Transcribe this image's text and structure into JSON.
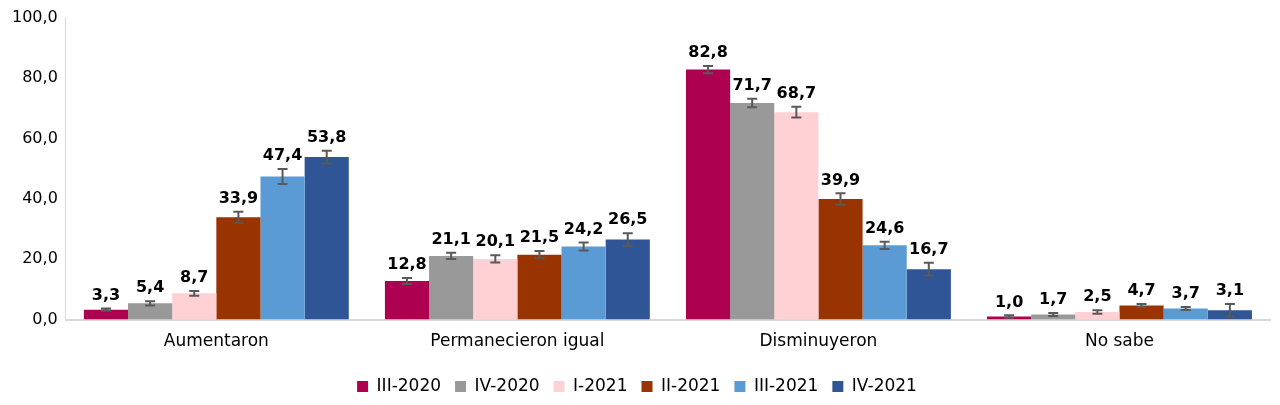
{
  "chart_data": {
    "type": "bar",
    "categories": [
      "Aumentaron",
      "Permanecieron igual",
      "Disminuyeron",
      "No sabe"
    ],
    "ylim": [
      0,
      100
    ],
    "yticks": [
      {
        "value": 0,
        "label": "0,0"
      },
      {
        "value": 20,
        "label": "20,0"
      },
      {
        "value": 40,
        "label": "40,0"
      },
      {
        "value": 60,
        "label": "60,0"
      },
      {
        "value": 80,
        "label": "80,0"
      },
      {
        "value": 100,
        "label": "100,0"
      }
    ],
    "grid": false,
    "legend": "bottom",
    "series": [
      {
        "name": "III-2020",
        "color": "#ad0050",
        "values": [
          3.3,
          12.8,
          82.8,
          1.0
        ],
        "errors": [
          0.4,
          1.0,
          1.2,
          0.4
        ],
        "value_labels": [
          "3,3",
          "12,8",
          "82,8",
          "1,0"
        ]
      },
      {
        "name": "IV-2020",
        "color": "#999999",
        "values": [
          5.4,
          21.1,
          71.7,
          1.7
        ],
        "errors": [
          0.7,
          1.0,
          1.4,
          0.5
        ],
        "value_labels": [
          "5,4",
          "21,1",
          "71,7",
          "1,7"
        ]
      },
      {
        "name": "I-2021",
        "color": "#ffd0d4",
        "values": [
          8.7,
          20.1,
          68.7,
          2.5
        ],
        "errors": [
          0.8,
          1.2,
          1.8,
          0.6
        ],
        "value_labels": [
          "8,7",
          "20,1",
          "68,7",
          "2,5"
        ]
      },
      {
        "name": "II-2021",
        "color": "#993300",
        "values": [
          33.9,
          21.5,
          39.9,
          4.7
        ],
        "errors": [
          1.8,
          1.2,
          1.9,
          0.5
        ],
        "value_labels": [
          "33,9",
          "21,5",
          "39,9",
          "4,7"
        ]
      },
      {
        "name": "III-2021",
        "color": "#5b9bd5",
        "values": [
          47.4,
          24.2,
          24.6,
          3.7
        ],
        "errors": [
          2.5,
          1.3,
          1.2,
          0.5
        ],
        "value_labels": [
          "47,4",
          "24,2",
          "24,6",
          "3,7"
        ]
      },
      {
        "name": "IV-2021",
        "color": "#2f5597",
        "values": [
          53.8,
          26.5,
          16.7,
          3.1
        ],
        "errors": [
          2.1,
          2.1,
          2.1,
          2.1
        ],
        "value_labels": [
          "53,8",
          "26,5",
          "16,7",
          "3,1"
        ]
      }
    ]
  }
}
